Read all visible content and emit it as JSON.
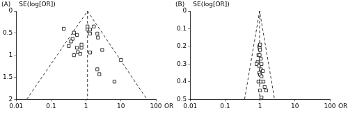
{
  "chart_data": [
    {
      "type": "scatter",
      "title": "(A)",
      "x_label": "OR",
      "y_label": "SE(log[OR])",
      "log": "x",
      "grid": false,
      "tick_labels": true,
      "xlim": [
        0.01,
        100
      ],
      "xticks": [
        0.01,
        0.1,
        1,
        10,
        100
      ],
      "ylim": [
        0,
        2
      ],
      "yticks": [
        0,
        0.5,
        1,
        1.5,
        2
      ],
      "series": [
        {
          "color": "#000000",
          "marker": "square",
          "x": [
            0.23,
            0.45,
            0.55,
            0.41,
            0.37,
            1.1,
            1.1,
            1.3,
            1.67,
            1.3,
            2.1,
            2.2,
            0.32,
            0.55,
            0.74,
            0.74,
            0.58,
            0.68,
            0.45,
            1.3,
            2.9,
            2.1,
            2.4,
            10,
            6.5
          ],
          "values": [
            0.4,
            0.49,
            0.54,
            0.63,
            0.69,
            0.35,
            0.42,
            0.42,
            0.35,
            0.51,
            0.51,
            0.6,
            0.79,
            0.83,
            0.76,
            0.83,
            0.93,
            0.97,
            1.0,
            0.94,
            0.88,
            1.32,
            1.43,
            1.11,
            1.6
          ]
        }
      ],
      "lines": [
        {
          "color": "#000000",
          "line_style": "dashed",
          "x": [
            0.02,
            1.1,
            55
          ],
          "values": [
            2,
            0,
            2
          ]
        },
        {
          "color": "#000000",
          "line_style": "dashed",
          "x": [
            1.1,
            1.1
          ],
          "values": [
            0,
            2
          ]
        }
      ]
    },
    {
      "type": "scatter",
      "title": "(B)",
      "x_label": "OR",
      "y_label": "SE(log[OR])",
      "log": "x",
      "grid": false,
      "tick_labels": true,
      "xlim": [
        0.01,
        100
      ],
      "xticks": [
        0.01,
        0.1,
        1,
        10,
        100
      ],
      "ylim": [
        0,
        0.5
      ],
      "yticks": [
        0,
        0.1,
        0.2,
        0.3,
        0.4,
        0.5
      ],
      "series": [
        {
          "color": "#000000",
          "marker": "square",
          "x": [
            0.95,
            1.0,
            0.97,
            1.0,
            0.9,
            0.97,
            1.05,
            0.85,
            0.8,
            0.93,
            1.1,
            1.05,
            0.95,
            1.0,
            1.2,
            1.1,
            0.9,
            1.05,
            1.25,
            1.35,
            1.5,
            1.0,
            1.1
          ],
          "values": [
            0.2,
            0.19,
            0.21,
            0.22,
            0.25,
            0.25,
            0.27,
            0.29,
            0.3,
            0.31,
            0.3,
            0.33,
            0.35,
            0.36,
            0.34,
            0.37,
            0.4,
            0.4,
            0.4,
            0.43,
            0.45,
            0.45,
            0.49
          ]
        }
      ],
      "lines": [
        {
          "color": "#000000",
          "line_style": "dashed",
          "x": [
            0.36,
            0.97,
            2.6
          ],
          "values": [
            0.5,
            0,
            0.5
          ]
        },
        {
          "color": "#000000",
          "line_style": "dashed",
          "x": [
            0.97,
            0.97
          ],
          "values": [
            0,
            0.5
          ]
        }
      ]
    }
  ]
}
